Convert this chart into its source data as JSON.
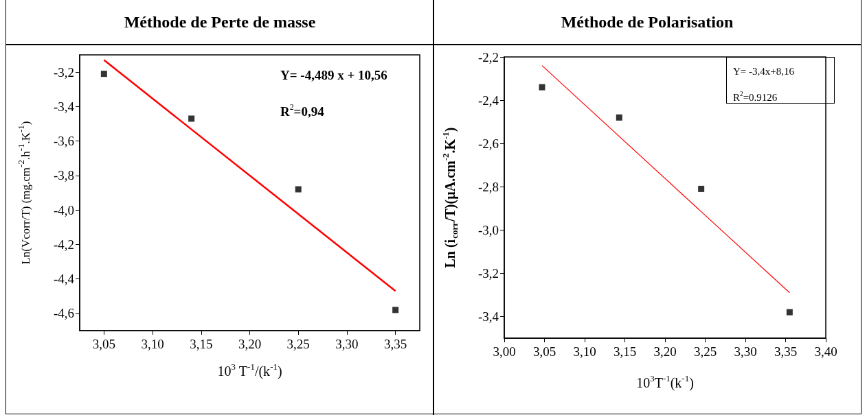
{
  "chart_data": [
    {
      "type": "scatter",
      "title": "Méthode de Perte de masse",
      "xlabel": "10$^{3}$ T$^{-1}$/(k$^{-1}$)",
      "ylabel": "Ln(Vcorr/T) (mg.cm$^{-2}$.h$^{-1}$.K$^{-1}$)",
      "marker": "square",
      "grid": false,
      "annotations": [
        "Y= -4,489 x + 10,56",
        "R$^{2}$=0,94"
      ],
      "xlim": [
        3.025,
        3.375
      ],
      "xticks": [
        {
          "value": 3.05,
          "label": "3,05"
        },
        {
          "value": 3.1,
          "label": "3,10"
        },
        {
          "value": 3.15,
          "label": "3,15"
        },
        {
          "value": 3.2,
          "label": "3,20"
        },
        {
          "value": 3.25,
          "label": "3,25"
        },
        {
          "value": 3.3,
          "label": "3,30"
        },
        {
          "value": 3.35,
          "label": "3,35"
        }
      ],
      "ylim": [
        -4.7,
        -3.1
      ],
      "yticks": [
        {
          "value": -3.2,
          "label": "-3,2"
        },
        {
          "value": -3.4,
          "label": "-3,4"
        },
        {
          "value": -3.6,
          "label": "-3,6"
        },
        {
          "value": -3.8,
          "label": "-3,8"
        },
        {
          "value": -4.0,
          "label": "-4,0"
        },
        {
          "value": -4.2,
          "label": "-4,2"
        },
        {
          "value": -4.4,
          "label": "-4,4"
        },
        {
          "value": -4.6,
          "label": "-4,6"
        }
      ],
      "series": [
        {
          "color": "#000000",
          "x": [
            3.05,
            3.14,
            3.25,
            3.35
          ],
          "values": [
            -3.21,
            -3.47,
            -3.88,
            -4.58
          ]
        },
        {
          "type": "line",
          "marker": "none",
          "color": "#ff0000",
          "x": [
            3.05,
            3.35
          ],
          "values": [
            -3.13,
            -4.47
          ]
        }
      ]
    },
    {
      "type": "scatter",
      "title": "Méthode de Polarisation",
      "xlabel": "10$^{3}$T$^{-1}$(k$^{-1}$)",
      "ylabel": "Ln (i$_{corr}$/T)(µA.cm$^{-2}$.K$^{-1}$)",
      "marker": "square",
      "grid": false,
      "annotations": [
        "Y= -3,4x+8,16",
        "R$^{2}$=0.9126"
      ],
      "xlim": [
        3.0,
        3.4
      ],
      "xticks": [
        {
          "value": 3.0,
          "label": "3,00"
        },
        {
          "value": 3.05,
          "label": "3,05"
        },
        {
          "value": 3.1,
          "label": "3,10"
        },
        {
          "value": 3.15,
          "label": "3,15"
        },
        {
          "value": 3.2,
          "label": "3,20"
        },
        {
          "value": 3.25,
          "label": "3,25"
        },
        {
          "value": 3.3,
          "label": "3,30"
        },
        {
          "value": 3.35,
          "label": "3,35"
        },
        {
          "value": 3.4,
          "label": "3,40"
        }
      ],
      "ylim": [
        -3.5,
        -2.2
      ],
      "yticks": [
        {
          "value": -2.2,
          "label": "-2,2"
        },
        {
          "value": -2.4,
          "label": "-2,4"
        },
        {
          "value": -2.6,
          "label": "-2,6"
        },
        {
          "value": -2.8,
          "label": "-2,8"
        },
        {
          "value": -3.0,
          "label": "-3,0"
        },
        {
          "value": -3.2,
          "label": "-3,2"
        },
        {
          "value": -3.4,
          "label": "-3,4"
        }
      ],
      "series": [
        {
          "color": "#000000",
          "x": [
            3.047,
            3.143,
            3.245,
            3.355
          ],
          "values": [
            -2.34,
            -2.48,
            -2.81,
            -3.38
          ]
        },
        {
          "type": "line",
          "marker": "none",
          "color": "#ff0000",
          "x": [
            3.047,
            3.355
          ],
          "values": [
            -2.24,
            -3.29
          ]
        }
      ]
    }
  ]
}
